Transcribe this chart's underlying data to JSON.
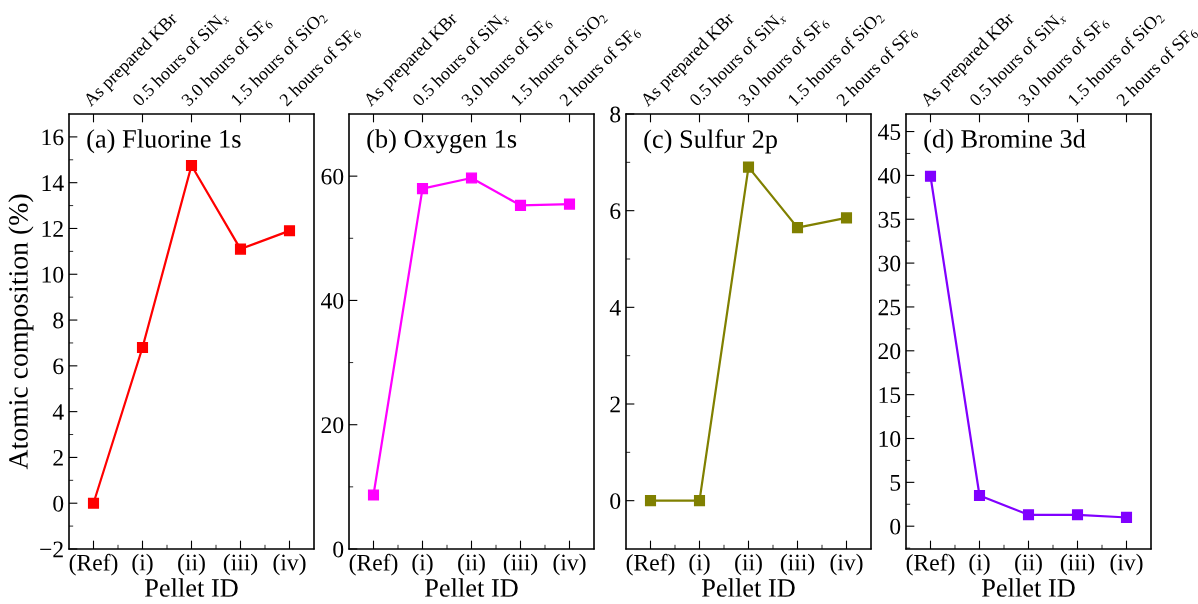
{
  "chart_data": [
    {
      "type": "line",
      "title": "(a) Fluorine 1s",
      "xlabel": "Pellet ID",
      "ylabel": "Atomic composition (%)",
      "categories": [
        "(Ref)",
        "(i)",
        "(ii)",
        "(iii)",
        "(iv)"
      ],
      "annotations": [
        "As prepared KBr",
        "0.5 hours of SiN$_{x}$",
        "3.0 hours of SF$_{6}$",
        "1.5 hours of SiO$_{2}$",
        "2 hours of SF$_{6}$"
      ],
      "series": [
        {
          "color": "#ff0000",
          "values": [
            0,
            6.8,
            14.75,
            11.1,
            11.9
          ]
        }
      ],
      "ylim": [
        -2,
        17
      ],
      "yticks": [
        {
          "value": -2,
          "label": "−2"
        },
        0,
        2,
        4,
        6,
        8,
        10,
        12,
        14,
        16
      ],
      "marker": "square",
      "line_style": "solid",
      "grid": false
    },
    {
      "type": "line",
      "title": "(b) Oxygen 1s",
      "xlabel": "Pellet ID",
      "categories": [
        "(Ref)",
        "(i)",
        "(ii)",
        "(iii)",
        "(iv)"
      ],
      "annotations": [
        "As prepared KBr",
        "0.5 hours of SiN$_{x}$",
        "3.0 hours of SF$_{6}$",
        "1.5 hours of SiO$_{2}$",
        "2 hours of SF$_{6}$"
      ],
      "series": [
        {
          "color": "#ff00ff",
          "values": [
            8.7,
            58,
            59.7,
            55.3,
            55.5
          ]
        }
      ],
      "ylim": [
        0,
        70
      ],
      "yticks": [
        0,
        20,
        40,
        60
      ],
      "marker": "square",
      "line_style": "solid",
      "grid": false
    },
    {
      "type": "line",
      "title": "(c) Sulfur 2p",
      "xlabel": "Pellet ID",
      "categories": [
        "(Ref)",
        "(i)",
        "(ii)",
        "(iii)",
        "(iv)"
      ],
      "annotations": [
        "As prepared KBr",
        "0.5 hours of SiN$_{x}$",
        "3.0 hours of SF$_{6}$",
        "1.5 hours of SiO$_{2}$",
        "2 hours of SF$_{6}$"
      ],
      "series": [
        {
          "color": "#808000",
          "values": [
            0,
            0,
            6.9,
            5.65,
            5.85
          ]
        }
      ],
      "ylim": [
        -1,
        8
      ],
      "yticks": [
        0,
        2,
        4,
        6,
        8
      ],
      "marker": "square",
      "line_style": "solid",
      "grid": false
    },
    {
      "type": "line",
      "title": "(d) Bromine 3d",
      "xlabel": "Pellet ID",
      "categories": [
        "(Ref)",
        "(i)",
        "(ii)",
        "(iii)",
        "(iv)"
      ],
      "annotations": [
        "As prepared KBr",
        "0.5 hours of SiN$_{x}$",
        "3.0 hours of SF$_{6}$",
        "1.5 hours of SiO$_{2}$",
        "2 hours of SF$_{6}$"
      ],
      "series": [
        {
          "color": "#8000ff",
          "values": [
            39.9,
            3.5,
            1.3,
            1.3,
            1.0
          ]
        }
      ],
      "ylim": [
        -2.6,
        47
      ],
      "yticks": [
        0,
        5,
        10,
        15,
        20,
        25,
        30,
        35,
        40,
        45
      ],
      "marker": "square",
      "line_style": "solid",
      "grid": false
    }
  ]
}
